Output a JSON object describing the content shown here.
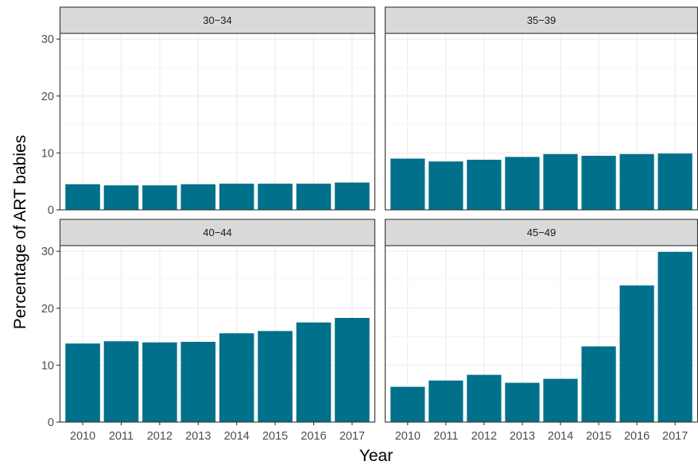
{
  "chart_data": {
    "type": "bar",
    "ylabel": "Percentage of ART babies",
    "xlabel": "Year",
    "ylim": [
      0,
      31
    ],
    "yticks": [
      0,
      10,
      20,
      30
    ],
    "categories": [
      "2010",
      "2011",
      "2012",
      "2013",
      "2014",
      "2015",
      "2016",
      "2017"
    ],
    "bar_color": "#00708b",
    "grid": true,
    "facets": [
      {
        "label": "30−34",
        "values": [
          4.5,
          4.3,
          4.3,
          4.5,
          4.6,
          4.6,
          4.6,
          4.8
        ]
      },
      {
        "label": "35−39",
        "values": [
          9.0,
          8.5,
          8.8,
          9.3,
          9.8,
          9.5,
          9.8,
          9.9
        ]
      },
      {
        "label": "40−44",
        "values": [
          13.8,
          14.2,
          14.0,
          14.1,
          15.6,
          16.0,
          17.5,
          18.3
        ]
      },
      {
        "label": "45−49",
        "values": [
          6.2,
          7.3,
          8.3,
          6.9,
          7.6,
          13.3,
          24.0,
          29.9
        ]
      }
    ]
  }
}
